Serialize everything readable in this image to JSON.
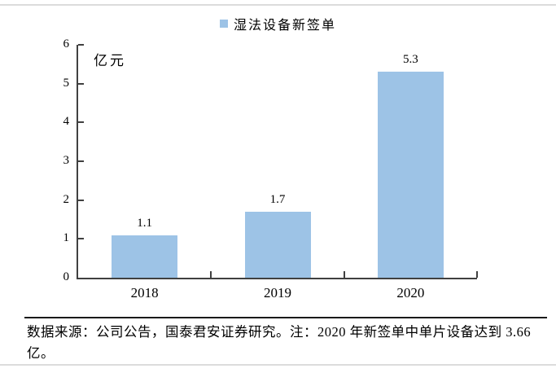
{
  "legend": {
    "label": "湿法设备新签单",
    "marker_icon": "legend-square-icon"
  },
  "unit_label": "亿元",
  "footer": {
    "text": "数据来源：公司公告，国泰君安证券研究。注：2020 年新签单中单片设备达到 3.66 亿。"
  },
  "colors": {
    "bar": "#9DC3E6",
    "axis": "#404040",
    "page_rule": "#dcdcdc"
  },
  "chart_data": {
    "type": "bar",
    "title": "湿法设备新签单",
    "categories": [
      "2018",
      "2019",
      "2020"
    ],
    "values": [
      1.1,
      1.7,
      5.3
    ],
    "data_labels": [
      "1.1",
      "1.7",
      "5.3"
    ],
    "xlabel": "",
    "ylabel": "亿元",
    "ylim": [
      0,
      6
    ],
    "yticks": [
      0,
      1,
      2,
      3,
      4,
      5,
      6
    ],
    "grid": false,
    "legend_position": "top-center",
    "legend_entries": [
      "湿法设备新签单"
    ],
    "bar_color": "#9DC3E6"
  }
}
